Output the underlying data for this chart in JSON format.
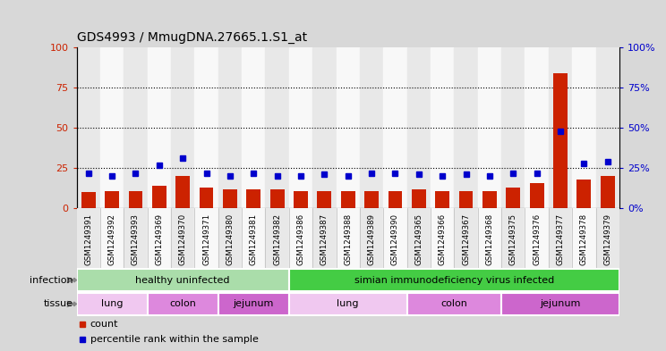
{
  "title": "GDS4993 / MmugDNA.27665.1.S1_at",
  "samples": [
    "GSM1249391",
    "GSM1249392",
    "GSM1249393",
    "GSM1249369",
    "GSM1249370",
    "GSM1249371",
    "GSM1249380",
    "GSM1249381",
    "GSM1249382",
    "GSM1249386",
    "GSM1249387",
    "GSM1249388",
    "GSM1249389",
    "GSM1249390",
    "GSM1249365",
    "GSM1249366",
    "GSM1249367",
    "GSM1249368",
    "GSM1249375",
    "GSM1249376",
    "GSM1249377",
    "GSM1249378",
    "GSM1249379"
  ],
  "counts": [
    10,
    11,
    11,
    14,
    20,
    13,
    12,
    12,
    12,
    11,
    11,
    11,
    11,
    11,
    12,
    11,
    11,
    11,
    13,
    16,
    84,
    18,
    20
  ],
  "percentiles": [
    22,
    20,
    22,
    27,
    31,
    22,
    20,
    22,
    20,
    20,
    21,
    20,
    22,
    22,
    21,
    20,
    21,
    20,
    22,
    22,
    48,
    28,
    29
  ],
  "infection_groups": [
    {
      "label": "healthy uninfected",
      "start": 0,
      "end": 9,
      "color": "#aaddaa"
    },
    {
      "label": "simian immunodeficiency virus infected",
      "start": 9,
      "end": 23,
      "color": "#44cc44"
    }
  ],
  "tissue_groups": [
    {
      "label": "lung",
      "start": 0,
      "end": 3,
      "color": "#f0c8f0"
    },
    {
      "label": "colon",
      "start": 3,
      "end": 6,
      "color": "#dd88dd"
    },
    {
      "label": "jejunum",
      "start": 6,
      "end": 9,
      "color": "#cc66cc"
    },
    {
      "label": "lung",
      "start": 9,
      "end": 14,
      "color": "#f0c8f0"
    },
    {
      "label": "colon",
      "start": 14,
      "end": 18,
      "color": "#dd88dd"
    },
    {
      "label": "jejunum",
      "start": 18,
      "end": 23,
      "color": "#cc66cc"
    }
  ],
  "bar_color": "#cc2200",
  "dot_color": "#0000cc",
  "yticks": [
    0,
    25,
    50,
    75,
    100
  ],
  "bg_color": "#d8d8d8",
  "plot_bg": "#ffffff",
  "col_even": "#e8e8e8",
  "col_odd": "#f8f8f8"
}
